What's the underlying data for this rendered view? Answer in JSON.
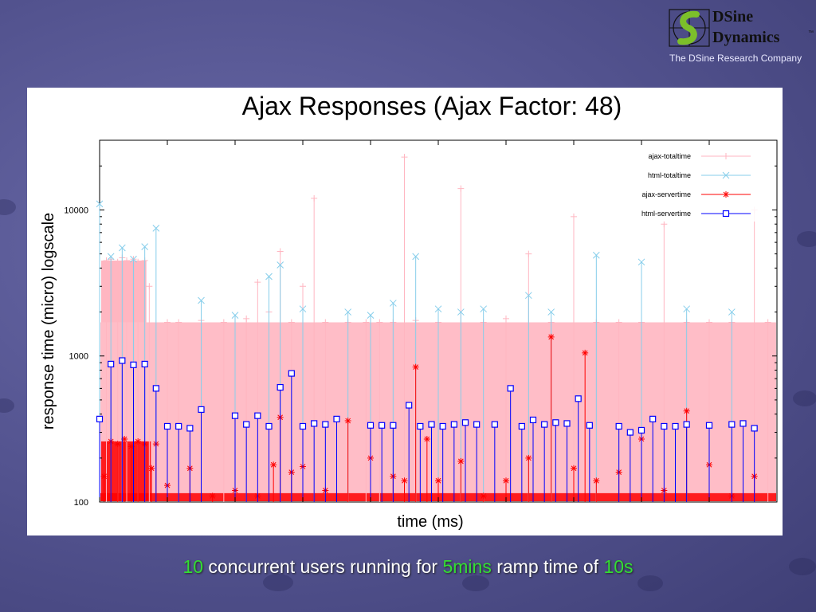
{
  "logo": {
    "line1": "DSine",
    "line2": "Dynamics",
    "trademark": "™",
    "tagline": "The DSine Research Company"
  },
  "caption": {
    "users": "10",
    "text1": " concurrent users running for ",
    "duration": "5mins",
    "text2": " ramp time of ",
    "ramp": "10s"
  },
  "colors": {
    "ajax_totaltime": "#ffb6c1",
    "html_totaltime": "#87ceeb",
    "ajax_servertime": "#ff0000",
    "html_servertime": "#0000ff"
  },
  "chart_data": {
    "type": "scatter",
    "title": "Ajax Responses (Ajax Factor: 48)",
    "xlabel": "time (ms)",
    "ylabel": "response time (micro) logscale",
    "yscale": "log",
    "ylim": [
      100,
      30000
    ],
    "xlim": [
      0,
      300
    ],
    "yticks": [
      "100",
      "1000",
      "10000"
    ],
    "legend_position": "top-right",
    "series": [
      {
        "name": "ajax-totaltime",
        "color": "#ffb6c1",
        "marker": "+",
        "x": [
          3,
          5,
          8,
          10,
          12,
          15,
          17,
          20,
          22,
          30,
          35,
          45,
          55,
          65,
          70,
          75,
          80,
          85,
          90,
          95,
          100,
          110,
          118,
          124,
          130,
          135,
          140,
          150,
          160,
          170,
          180,
          190,
          200,
          210,
          220,
          230,
          240,
          250,
          260,
          270,
          280,
          290,
          296
        ],
        "y": [
          4500,
          4600,
          4400,
          4700,
          4500,
          4600,
          4400,
          4500,
          3000,
          1700,
          1700,
          1750,
          1700,
          1800,
          3200,
          2000,
          5200,
          1700,
          3000,
          12000,
          1700,
          1700,
          1700,
          1700,
          1700,
          23000,
          1750,
          1700,
          14000,
          1700,
          1800,
          5000,
          1700,
          9000,
          1700,
          1700,
          1700,
          8000,
          1700,
          1700,
          1700,
          10000,
          1700
        ]
      },
      {
        "name": "html-totaltime",
        "color": "#87ceeb",
        "marker": "x",
        "x": [
          0,
          5,
          10,
          15,
          20,
          25,
          45,
          60,
          75,
          80,
          90,
          110,
          120,
          130,
          140,
          150,
          160,
          170,
          190,
          200,
          220,
          240,
          260,
          280
        ],
        "y": [
          11000,
          4800,
          5500,
          4600,
          5600,
          7500,
          2400,
          1900,
          3500,
          4200,
          2100,
          2000,
          1900,
          2300,
          4800,
          2100,
          2000,
          2100,
          2600,
          2000,
          4900,
          4400,
          2100,
          2000
        ]
      },
      {
        "name": "ajax-servertime",
        "color": "#ff0000",
        "marker": "*",
        "x": [
          2,
          5,
          8,
          11,
          14,
          17,
          20,
          23,
          25,
          30,
          40,
          50,
          60,
          70,
          77,
          80,
          85,
          90,
          100,
          110,
          120,
          130,
          135,
          140,
          145,
          150,
          160,
          170,
          180,
          190,
          200,
          210,
          215,
          220,
          230,
          240,
          250,
          260,
          270,
          280,
          290
        ],
        "y": [
          150,
          260,
          250,
          270,
          240,
          260,
          250,
          170,
          250,
          130,
          170,
          110,
          120,
          110,
          180,
          380,
          160,
          175,
          120,
          360,
          200,
          150,
          140,
          840,
          270,
          140,
          190,
          110,
          140,
          200,
          1350,
          170,
          1050,
          140,
          160,
          270,
          120,
          420,
          180,
          110,
          150
        ]
      },
      {
        "name": "html-servertime",
        "color": "#0000ff",
        "marker": "square",
        "x": [
          0,
          5,
          10,
          15,
          20,
          25,
          30,
          35,
          40,
          45,
          60,
          65,
          70,
          75,
          80,
          85,
          90,
          95,
          100,
          105,
          120,
          125,
          130,
          137,
          142,
          147,
          152,
          157,
          162,
          167,
          175,
          182,
          187,
          192,
          197,
          202,
          207,
          212,
          217,
          230,
          235,
          240,
          245,
          250,
          255,
          260,
          270,
          280,
          285,
          290
        ],
        "y": [
          370,
          880,
          930,
          870,
          880,
          600,
          330,
          330,
          320,
          430,
          390,
          340,
          390,
          330,
          610,
          760,
          330,
          345,
          340,
          370,
          335,
          335,
          335,
          460,
          330,
          340,
          330,
          340,
          350,
          340,
          340,
          600,
          330,
          365,
          340,
          350,
          345,
          510,
          335,
          330,
          300,
          310,
          370,
          330,
          330,
          340,
          335,
          340,
          345,
          320
        ]
      }
    ]
  }
}
